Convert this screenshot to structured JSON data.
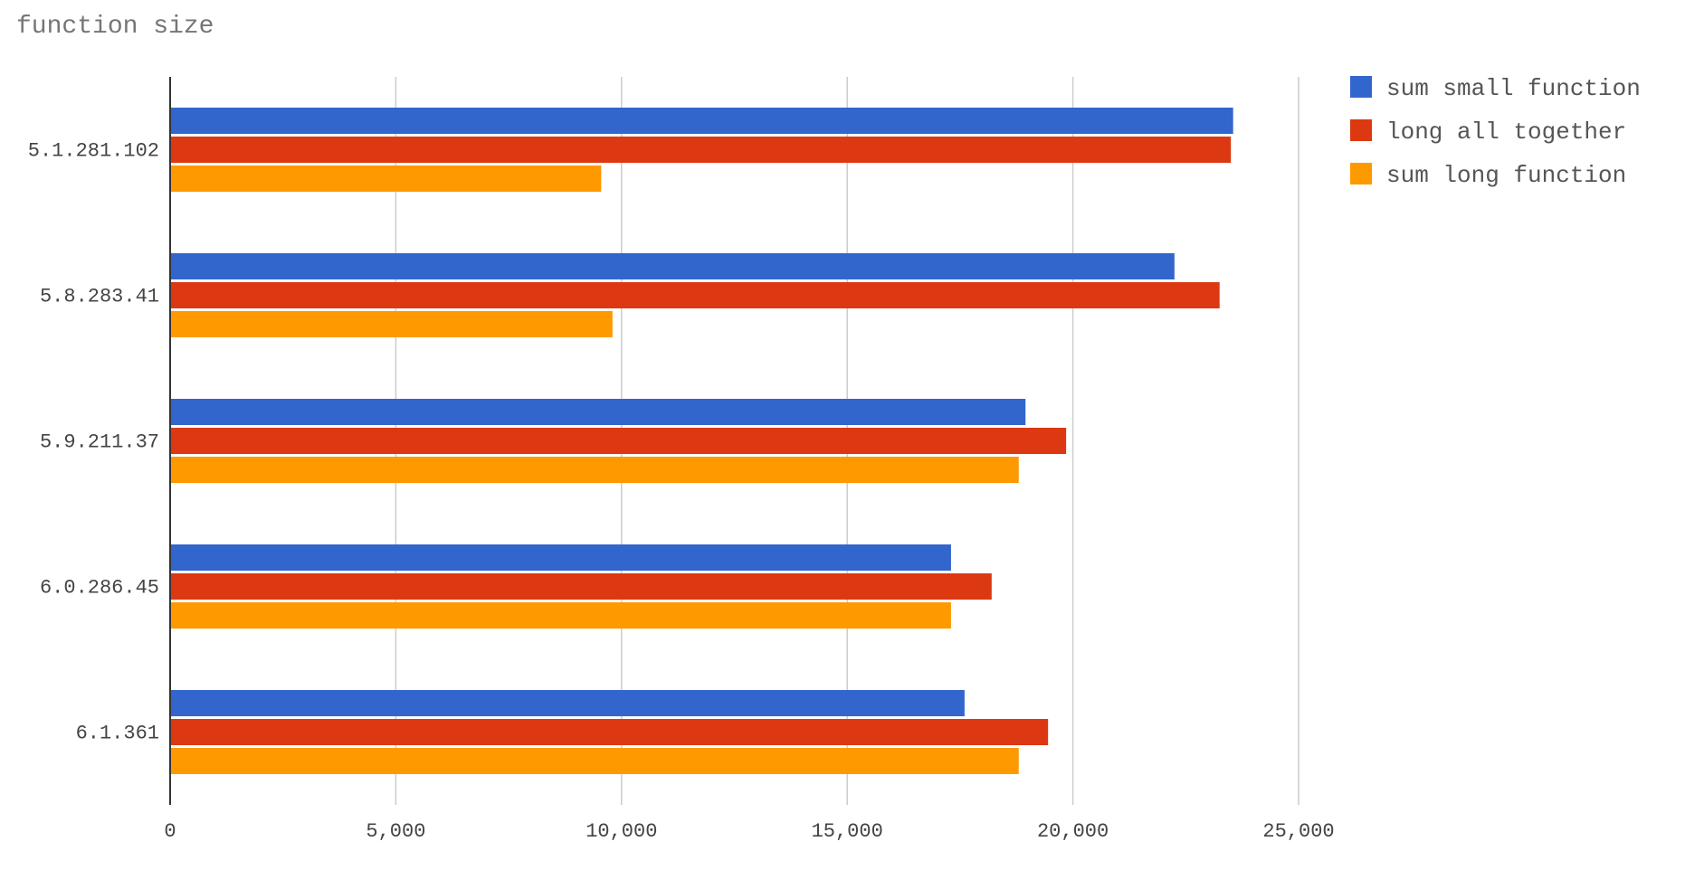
{
  "chart_data": {
    "type": "bar",
    "orientation": "horizontal",
    "title": "function size",
    "categories": [
      "5.1.281.102",
      "5.8.283.41",
      "5.9.211.37",
      "6.0.286.45",
      "6.1.361"
    ],
    "series": [
      {
        "name": "sum small function",
        "color": "#3366cc",
        "values": [
          23550,
          22250,
          18950,
          17300,
          17600
        ]
      },
      {
        "name": "long all together",
        "color": "#dc3912",
        "values": [
          23500,
          23250,
          19850,
          18200,
          19450
        ]
      },
      {
        "name": "sum long function",
        "color": "#ff9900",
        "values": [
          9550,
          9800,
          18800,
          17300,
          18800
        ]
      }
    ],
    "x_ticks": [
      0,
      5000,
      10000,
      15000,
      20000,
      25000
    ],
    "x_tick_labels": [
      "0",
      "5,000",
      "10,000",
      "15,000",
      "20,000",
      "25,000"
    ],
    "xlim": [
      0,
      25000
    ],
    "grid": true,
    "legend_position": "right"
  }
}
